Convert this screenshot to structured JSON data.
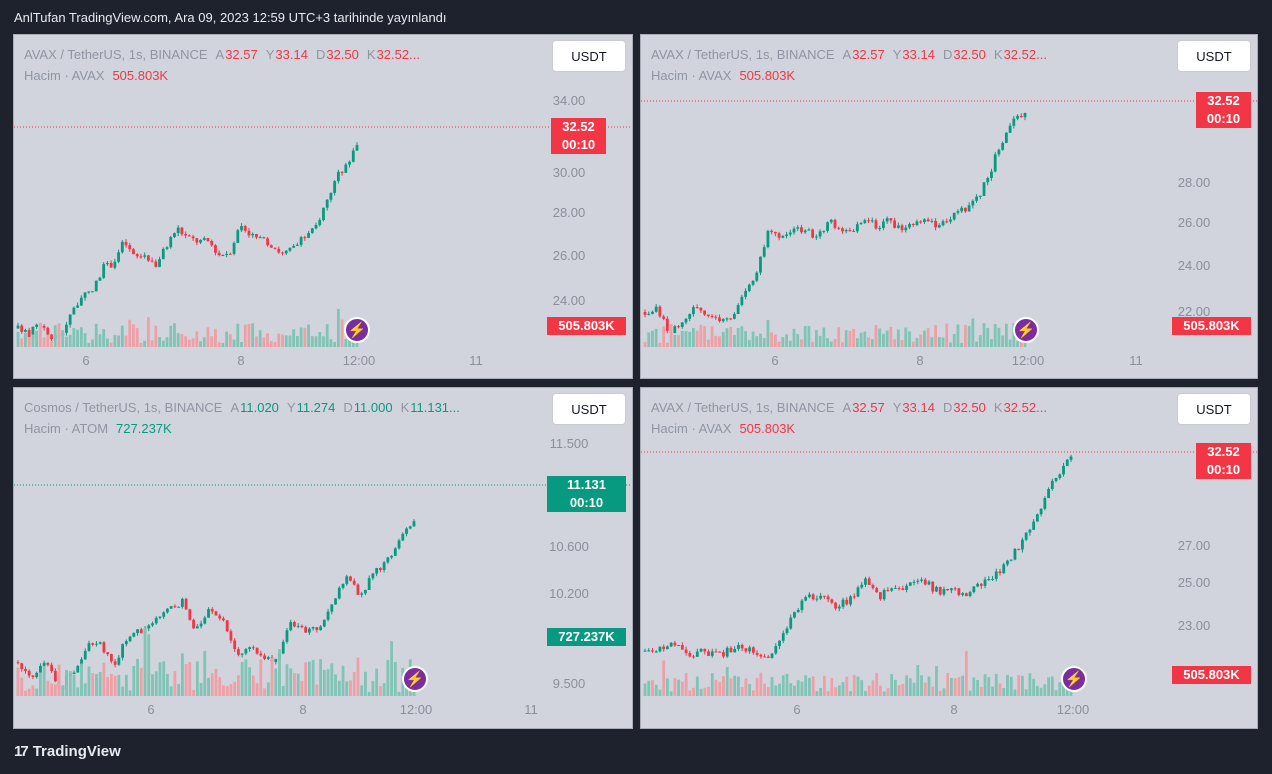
{
  "caption": "AnlTufan TradingView.com, Ara 09, 2023 12:59 UTC+3 tarihinde yayınlandı",
  "brand": {
    "logo_mark": "17",
    "name": "TradingView"
  },
  "colors": {
    "up": "#089981",
    "down": "#f23645",
    "panel_bg": "#d1d4dc",
    "page_bg": "#1e222d"
  },
  "icons": {
    "bolt": "⚡"
  },
  "panels": [
    {
      "symbol": "AVAX / TetherUS, 1s, BINANCE",
      "o_label": "A",
      "o": "32.57",
      "h_label": "Y",
      "h": "33.14",
      "l_label": "D",
      "l": "32.50",
      "c_label": "K",
      "c": "32.52...",
      "vol_label": "Hacim · AVAX",
      "vol_value": "505.803K",
      "currency_button": "USDT",
      "price_badge": "32.52",
      "countdown": "00:10",
      "volume_badge": "505.803K",
      "trend": "down",
      "y_ticks": [
        "34.00",
        "30.00",
        "28.00",
        "26.00",
        "24.00"
      ],
      "x_ticks": [
        "6",
        "8",
        "12:00",
        "11"
      ]
    },
    {
      "symbol": "AVAX / TetherUS, 1s, BINANCE",
      "o_label": "A",
      "o": "32.57",
      "h_label": "Y",
      "h": "33.14",
      "l_label": "D",
      "l": "32.50",
      "c_label": "K",
      "c": "32.52...",
      "vol_label": "Hacim · AVAX",
      "vol_value": "505.803K",
      "currency_button": "USDT",
      "price_badge": "32.52",
      "countdown": "00:10",
      "volume_badge": "505.803K",
      "trend": "down",
      "y_ticks": [
        "28.00",
        "26.00",
        "24.00",
        "22.00"
      ],
      "x_ticks": [
        "6",
        "8",
        "12:00",
        "11"
      ]
    },
    {
      "symbol": "Cosmos / TetherUS, 1s, BINANCE",
      "o_label": "A",
      "o": "11.020",
      "h_label": "Y",
      "h": "11.274",
      "l_label": "D",
      "l": "11.000",
      "c_label": "K",
      "c": "11.131...",
      "vol_label": "Hacim · ATOM",
      "vol_value": "727.237K",
      "currency_button": "USDT",
      "price_badge": "11.131",
      "countdown": "00:10",
      "volume_badge": "727.237K",
      "trend": "up",
      "y_ticks": [
        "11.500",
        "10.600",
        "10.200",
        "9.500"
      ],
      "x_ticks": [
        "6",
        "8",
        "12:00",
        "11"
      ]
    },
    {
      "symbol": "AVAX / TetherUS, 1s, BINANCE",
      "o_label": "A",
      "o": "32.57",
      "h_label": "Y",
      "h": "33.14",
      "l_label": "D",
      "l": "32.50",
      "c_label": "K",
      "c": "32.52...",
      "vol_label": "Hacim · AVAX",
      "vol_value": "505.803K",
      "currency_button": "USDT",
      "price_badge": "32.52",
      "countdown": "00:10",
      "volume_badge": "505.803K",
      "trend": "down",
      "y_ticks": [
        "27.00",
        "25.00",
        "23.00"
      ],
      "x_ticks": [
        "6",
        "8",
        "12:00"
      ]
    }
  ],
  "chart_data": [
    {
      "type": "candlestick",
      "series": [
        {
          "name": "AVAX / TetherUS",
          "anchors": [
            21.6,
            21.2,
            22.0,
            21.1,
            21.1,
            22.6,
            23.4,
            23.8,
            25.2,
            25.5,
            26.8,
            25.8,
            26.0,
            25.4,
            26.5,
            27.6,
            27.0,
            26.8,
            26.8,
            26.0,
            26.2,
            27.8,
            27.2,
            26.8,
            26.6,
            26.0,
            26.4,
            27.0,
            27.5,
            29.0,
            30.5,
            31.4,
            32.52
          ]
        }
      ],
      "x_ticks": [
        "6",
        "8",
        "12:00",
        "11"
      ],
      "y_ticks": [
        34.0,
        30.0,
        28.0,
        26.0,
        24.0
      ],
      "last_close": 32.52,
      "last_volume": "505.803K"
    },
    {
      "type": "candlestick",
      "series": [
        {
          "name": "AVAX / TetherUS",
          "anchors": [
            22.3,
            22.5,
            21.3,
            21.6,
            22.6,
            22.1,
            21.9,
            22.1,
            23.1,
            24.0,
            26.4,
            26.0,
            26.4,
            26.6,
            26.1,
            27.0,
            26.6,
            26.5,
            27.2,
            26.7,
            27.0,
            26.5,
            26.8,
            27.0,
            26.6,
            27.3,
            27.5,
            28.0,
            29.2,
            31.0,
            32.0,
            32.52
          ]
        }
      ],
      "x_ticks": [
        "6",
        "8",
        "12:00",
        "11"
      ],
      "y_ticks": [
        28.0,
        26.0,
        24.0,
        22.0
      ],
      "last_close": 32.52,
      "last_volume": "505.803K"
    },
    {
      "type": "candlestick",
      "series": [
        {
          "name": "Cosmos / TetherUS",
          "anchors": [
            9.75,
            9.62,
            9.75,
            9.5,
            9.65,
            9.9,
            9.95,
            9.7,
            10.0,
            10.05,
            10.15,
            10.25,
            10.35,
            10.05,
            10.25,
            10.2,
            9.8,
            9.9,
            9.75,
            9.8,
            10.15,
            10.05,
            10.1,
            10.3,
            10.6,
            10.4,
            10.6,
            10.75,
            10.95,
            11.131
          ]
        }
      ],
      "x_ticks": [
        "6",
        "8",
        "12:00",
        "11"
      ],
      "y_ticks": [
        11.5,
        10.6,
        10.2,
        9.5
      ],
      "last_close": 11.131,
      "last_volume": "727.237K"
    },
    {
      "type": "candlestick",
      "series": [
        {
          "name": "AVAX / TetherUS",
          "anchors": [
            22.4,
            22.5,
            22.7,
            22.2,
            22.4,
            22.2,
            22.6,
            22.5,
            22.0,
            22.6,
            24.2,
            25.2,
            25.4,
            24.6,
            25.2,
            26.2,
            25.3,
            25.6,
            25.8,
            26.0,
            25.5,
            25.6,
            25.4,
            26.0,
            26.4,
            27.3,
            28.5,
            30.0,
            31.5,
            32.52
          ]
        }
      ],
      "x_ticks": [
        "6",
        "8",
        "12:00"
      ],
      "y_ticks": [
        27.0,
        25.0,
        23.0
      ],
      "last_close": 32.52,
      "last_volume": "505.803K"
    }
  ]
}
